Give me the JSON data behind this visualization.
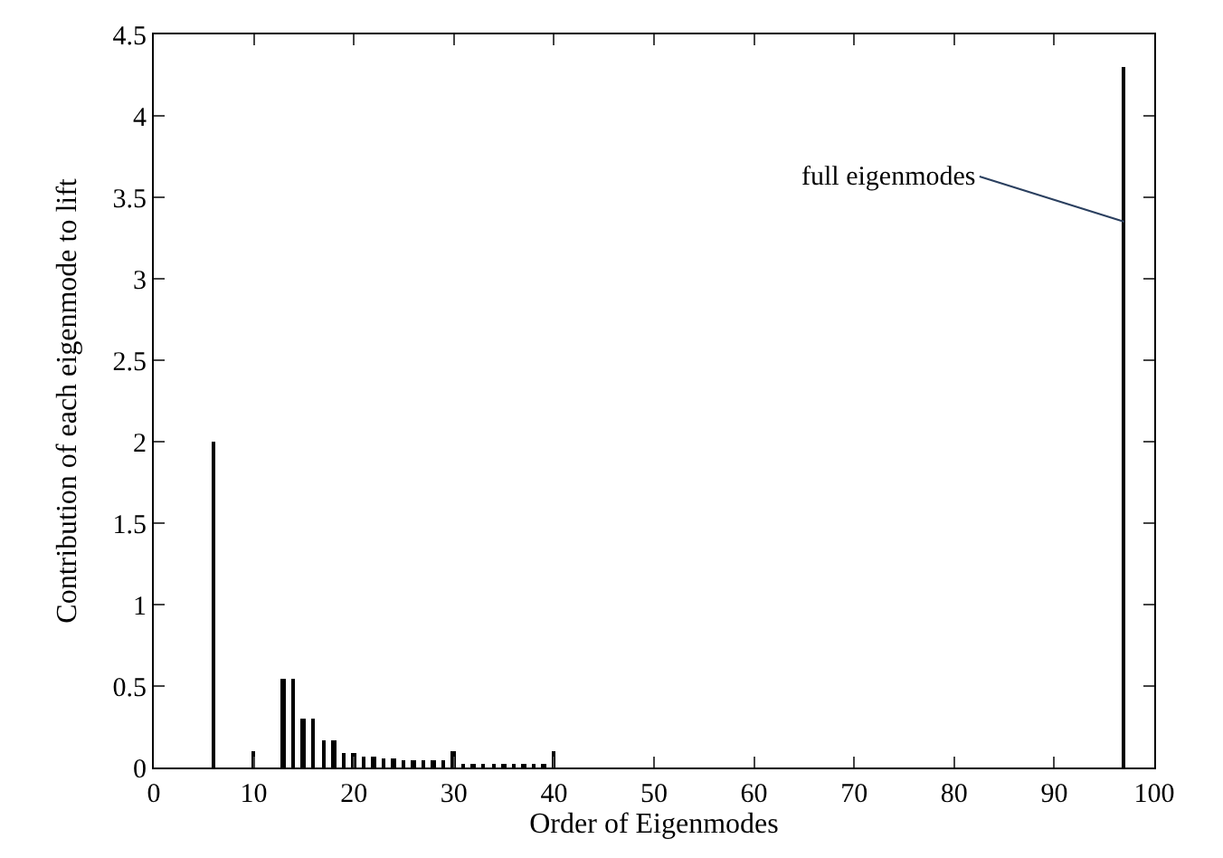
{
  "chart_data": {
    "type": "bar",
    "xlabel": "Order of Eigenmodes",
    "ylabel": "Contribution of each eigenmode to lift",
    "x": [
      6,
      10,
      13,
      14,
      15,
      16,
      17,
      18,
      19,
      20,
      21,
      22,
      23,
      24,
      25,
      26,
      27,
      28,
      29,
      30,
      31,
      32,
      33,
      34,
      35,
      36,
      37,
      38,
      39,
      40,
      97
    ],
    "series": [
      {
        "color": "#000000",
        "values": [
          2.0,
          0.1,
          0.55,
          0.55,
          0.3,
          0.3,
          0.17,
          0.17,
          0.09,
          0.09,
          0.07,
          0.07,
          0.06,
          0.06,
          0.05,
          0.05,
          0.05,
          0.05,
          0.05,
          0.1,
          0.02,
          0.02,
          0.02,
          0.02,
          0.02,
          0.02,
          0.02,
          0.02,
          0.02,
          0.1,
          4.3
        ]
      }
    ],
    "xlim": [
      0,
      100
    ],
    "xticks": [
      0,
      10,
      20,
      30,
      40,
      50,
      60,
      70,
      80,
      90,
      100
    ],
    "ylim": [
      0,
      4.5
    ],
    "yticks": [
      0,
      0.5,
      1,
      1.5,
      2,
      2.5,
      3,
      3.5,
      4,
      4.5
    ],
    "annotations": [
      {
        "text": "full eigenmodes",
        "x": 97,
        "y": 3.35
      }
    ]
  }
}
